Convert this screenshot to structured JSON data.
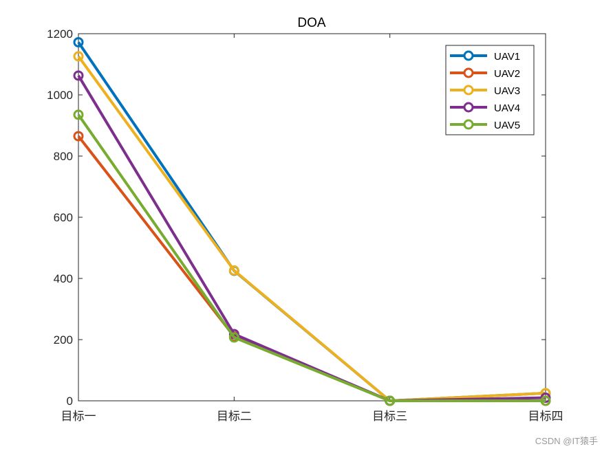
{
  "chart_data": {
    "type": "line",
    "title": "DOA",
    "xlabel": "",
    "ylabel": "",
    "categories": [
      "目标一",
      "目标二",
      "目标三",
      "目标四"
    ],
    "ylim": [
      0,
      1200
    ],
    "yticks": [
      0,
      200,
      400,
      600,
      800,
      1000,
      1200
    ],
    "grid": false,
    "legend_position": "top-right",
    "marker": "open-circle",
    "series": [
      {
        "name": "UAV1",
        "color": "#0072BD",
        "values": [
          1172,
          425,
          0,
          25
        ]
      },
      {
        "name": "UAV2",
        "color": "#D95319",
        "values": [
          865,
          210,
          0,
          0
        ]
      },
      {
        "name": "UAV3",
        "color": "#EDB120",
        "values": [
          1126,
          426,
          0,
          25
        ]
      },
      {
        "name": "UAV4",
        "color": "#7E2F8E",
        "values": [
          1063,
          218,
          0,
          10
        ]
      },
      {
        "name": "UAV5",
        "color": "#77AC30",
        "values": [
          935,
          207,
          0,
          0
        ]
      }
    ]
  },
  "watermark": "CSDN @IT猿手"
}
